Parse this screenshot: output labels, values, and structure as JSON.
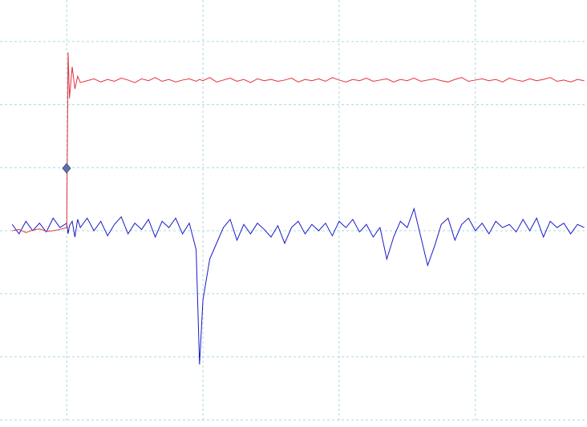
{
  "chart_data": {
    "type": "line",
    "xlim": [
      -0.49,
      3.82
    ],
    "ylim": [
      -3.05,
      3.66
    ],
    "xticks": [
      0,
      1,
      2,
      3
    ],
    "yticks": [
      -3,
      -2,
      -1,
      0,
      1,
      2,
      3
    ],
    "grid": true,
    "x": [
      -0.4,
      -0.35,
      -0.3,
      -0.25,
      -0.2,
      -0.15,
      -0.1,
      -0.05,
      0,
      0.01,
      0.02,
      0.04,
      0.06,
      0.08,
      0.1,
      0.15,
      0.2,
      0.25,
      0.3,
      0.35,
      0.4,
      0.45,
      0.5,
      0.55,
      0.6,
      0.65,
      0.7,
      0.75,
      0.8,
      0.85,
      0.9,
      0.95,
      0.975,
      1,
      1.05,
      1.1,
      1.15,
      1.2,
      1.25,
      1.3,
      1.35,
      1.4,
      1.45,
      1.5,
      1.55,
      1.6,
      1.65,
      1.7,
      1.75,
      1.8,
      1.85,
      1.9,
      1.95,
      2,
      2.05,
      2.1,
      2.15,
      2.2,
      2.25,
      2.3,
      2.35,
      2.4,
      2.45,
      2.5,
      2.55,
      2.6,
      2.65,
      2.7,
      2.75,
      2.8,
      2.85,
      2.9,
      2.95,
      3,
      3.05,
      3.1,
      3.15,
      3.2,
      3.25,
      3.3,
      3.35,
      3.4,
      3.45,
      3.5,
      3.55,
      3.6,
      3.65,
      3.7,
      3.75,
      3.8
    ],
    "series": [
      {
        "color": "#1a1ac8",
        "values": [
          0.1,
          -0.05,
          0.15,
          0.0,
          0.12,
          -0.02,
          0.2,
          0.05,
          0.12,
          -0.05,
          0.08,
          0.15,
          -0.1,
          0.18,
          0.05,
          0.2,
          0.0,
          0.15,
          -0.08,
          0.1,
          0.22,
          -0.05,
          0.12,
          0.02,
          0.18,
          -0.1,
          0.15,
          0.05,
          0.2,
          -0.05,
          0.12,
          -0.3,
          -2.12,
          -1.1,
          -0.45,
          -0.2,
          0.05,
          0.18,
          -0.15,
          0.1,
          -0.05,
          0.12,
          0.02,
          -0.1,
          0.08,
          -0.2,
          0.05,
          0.15,
          -0.05,
          0.1,
          0.0,
          0.12,
          -0.08,
          0.15,
          0.05,
          0.18,
          -0.02,
          0.1,
          -0.1,
          0.05,
          -0.45,
          -0.1,
          0.15,
          0.05,
          0.35,
          -0.1,
          -0.55,
          -0.25,
          0.1,
          0.2,
          -0.15,
          0.1,
          0.2,
          0.0,
          0.12,
          -0.05,
          0.15,
          0.05,
          0.1,
          -0.02,
          0.18,
          0.0,
          0.2,
          -0.1,
          0.15,
          0.05,
          0.12,
          -0.05,
          0.1,
          0.05
        ]
      },
      {
        "color": "#e0323c",
        "values": [
          0,
          0.02,
          -0.03,
          0.01,
          0.03,
          -0.01,
          0.0,
          0.02,
          0.05,
          2.83,
          2.1,
          2.6,
          2.25,
          2.45,
          2.35,
          2.38,
          2.41,
          2.36,
          2.4,
          2.37,
          2.42,
          2.39,
          2.35,
          2.41,
          2.38,
          2.43,
          2.37,
          2.4,
          2.36,
          2.39,
          2.41,
          2.37,
          2.4,
          2.38,
          2.43,
          2.36,
          2.39,
          2.42,
          2.37,
          2.4,
          2.35,
          2.41,
          2.38,
          2.4,
          2.37,
          2.39,
          2.42,
          2.36,
          2.4,
          2.38,
          2.41,
          2.37,
          2.43,
          2.39,
          2.36,
          2.4,
          2.38,
          2.42,
          2.37,
          2.39,
          2.41,
          2.36,
          2.4,
          2.38,
          2.42,
          2.37,
          2.39,
          2.41,
          2.38,
          2.36,
          2.4,
          2.43,
          2.37,
          2.39,
          2.41,
          2.38,
          2.4,
          2.36,
          2.42,
          2.39,
          2.37,
          2.41,
          2.38,
          2.4,
          2.43,
          2.37,
          2.39,
          2.36,
          2.4,
          2.38
        ]
      }
    ]
  }
}
